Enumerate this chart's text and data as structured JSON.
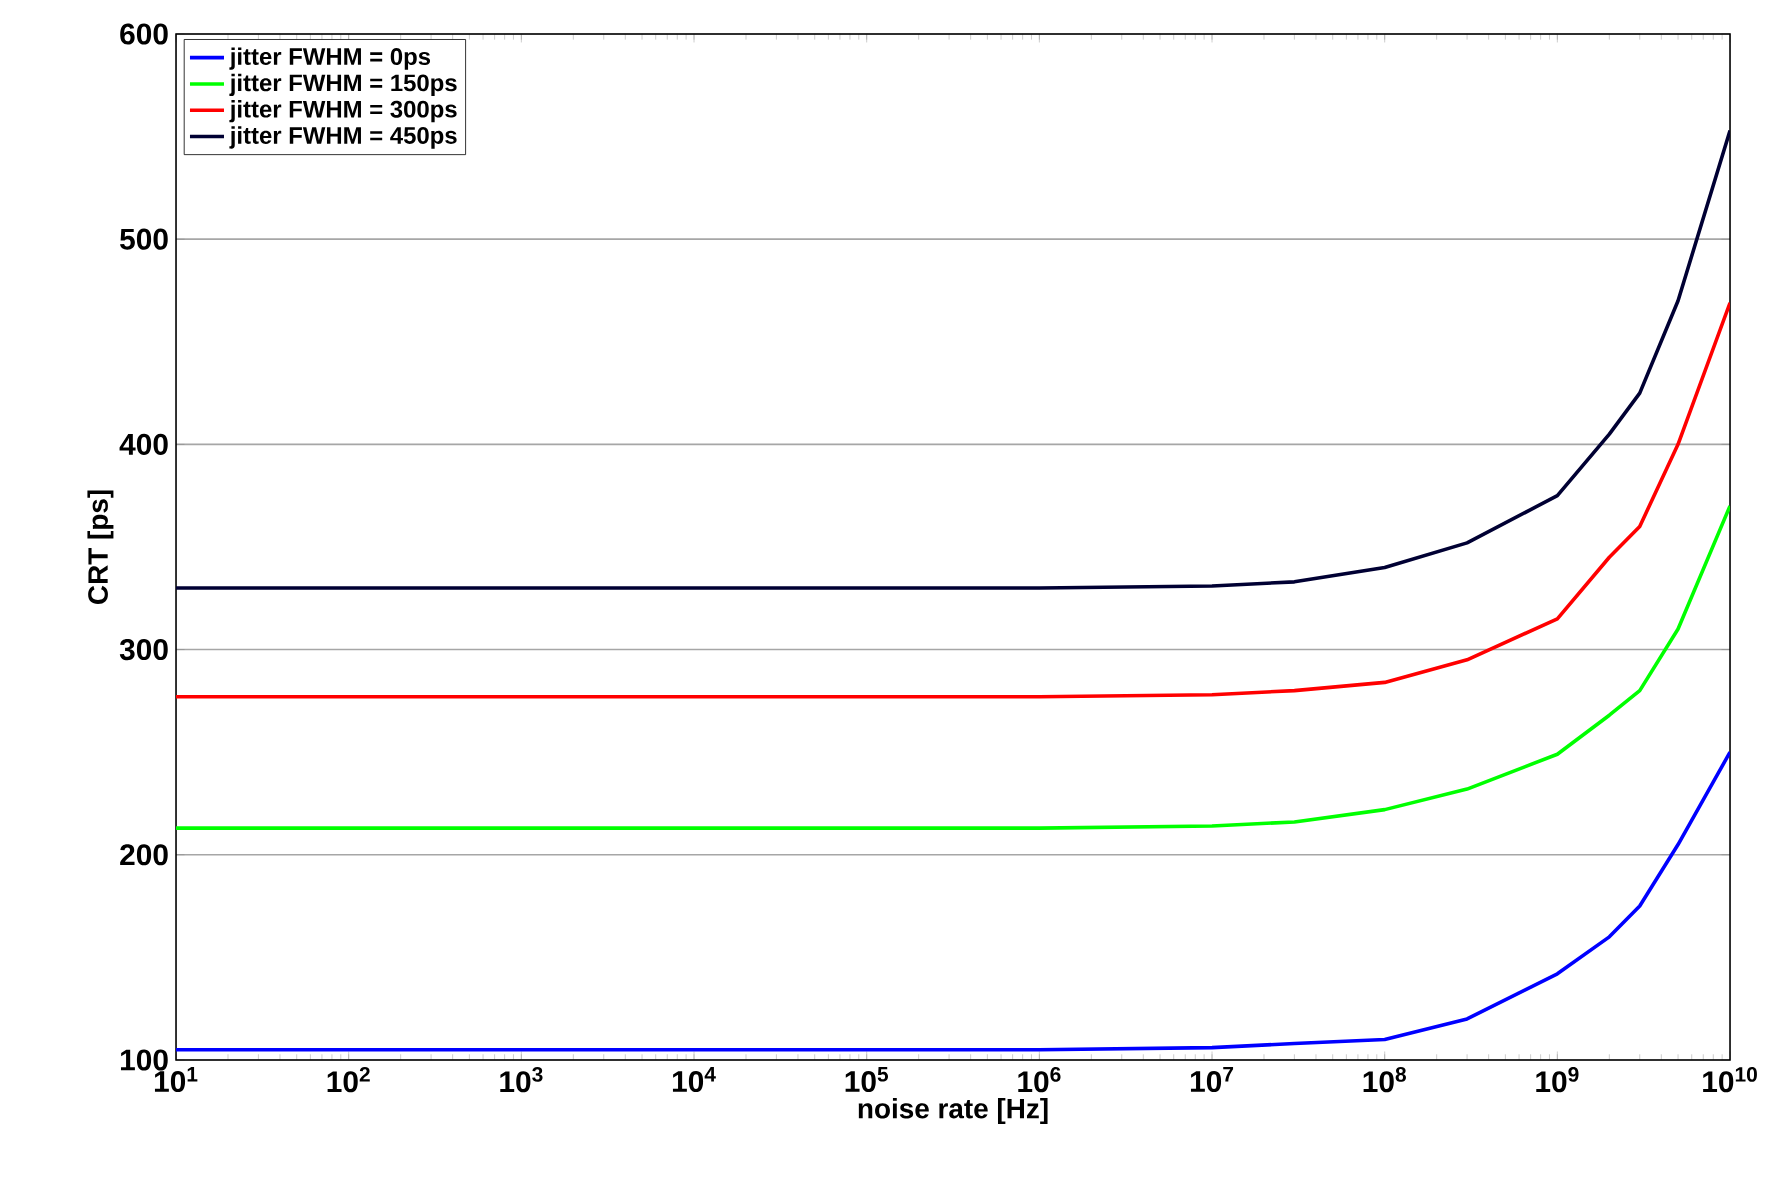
{
  "chart_data": {
    "type": "line",
    "xlabel": "noise rate [Hz]",
    "ylabel": "CRT [ps]",
    "log": "x",
    "grid": "y",
    "legend": "top left",
    "line_style": "solid",
    "marker": "none",
    "xlim": [
      10,
      10000000000
    ],
    "ylim": [
      100,
      600
    ],
    "xticks": [
      {
        "value": 10,
        "label": "10$^{1}$"
      },
      {
        "value": 100,
        "label": "10$^{2}$"
      },
      {
        "value": 1000,
        "label": "10$^{3}$"
      },
      {
        "value": 10000,
        "label": "10$^{4}$"
      },
      {
        "value": 100000,
        "label": "10$^{5}$"
      },
      {
        "value": 1000000,
        "label": "10$^{6}$"
      },
      {
        "value": 10000000,
        "label": "10$^{7}$"
      },
      {
        "value": 100000000,
        "label": "10$^{8}$"
      },
      {
        "value": 1000000000,
        "label": "10$^{9}$"
      },
      {
        "value": 10000000000,
        "label": "10$^{10}$"
      }
    ],
    "yticks": [
      100,
      200,
      300,
      400,
      500,
      600
    ],
    "x": [
      10,
      1000000,
      10000000,
      30000000,
      100000000,
      300000000,
      1000000000,
      2000000000,
      3000000000,
      5000000000,
      10000000000
    ],
    "series": [
      {
        "name": "jitter FWHM = 0ps",
        "color": "#0000ff",
        "values": [
          105,
          105,
          106,
          108,
          110,
          120,
          142,
          160,
          175,
          205,
          250
        ]
      },
      {
        "name": "jitter FWHM = 150ps",
        "color": "#00ff00",
        "values": [
          213,
          213,
          214,
          216,
          222,
          232,
          249,
          268,
          280,
          310,
          370
        ]
      },
      {
        "name": "jitter FWHM = 300ps",
        "color": "#ff0000",
        "values": [
          277,
          277,
          278,
          280,
          284,
          295,
          315,
          345,
          360,
          400,
          469
        ]
      },
      {
        "name": "jitter FWHM = 450ps",
        "color": "#000033",
        "values": [
          330,
          330,
          331,
          333,
          340,
          352,
          375,
          405,
          425,
          470,
          553
        ]
      }
    ]
  }
}
